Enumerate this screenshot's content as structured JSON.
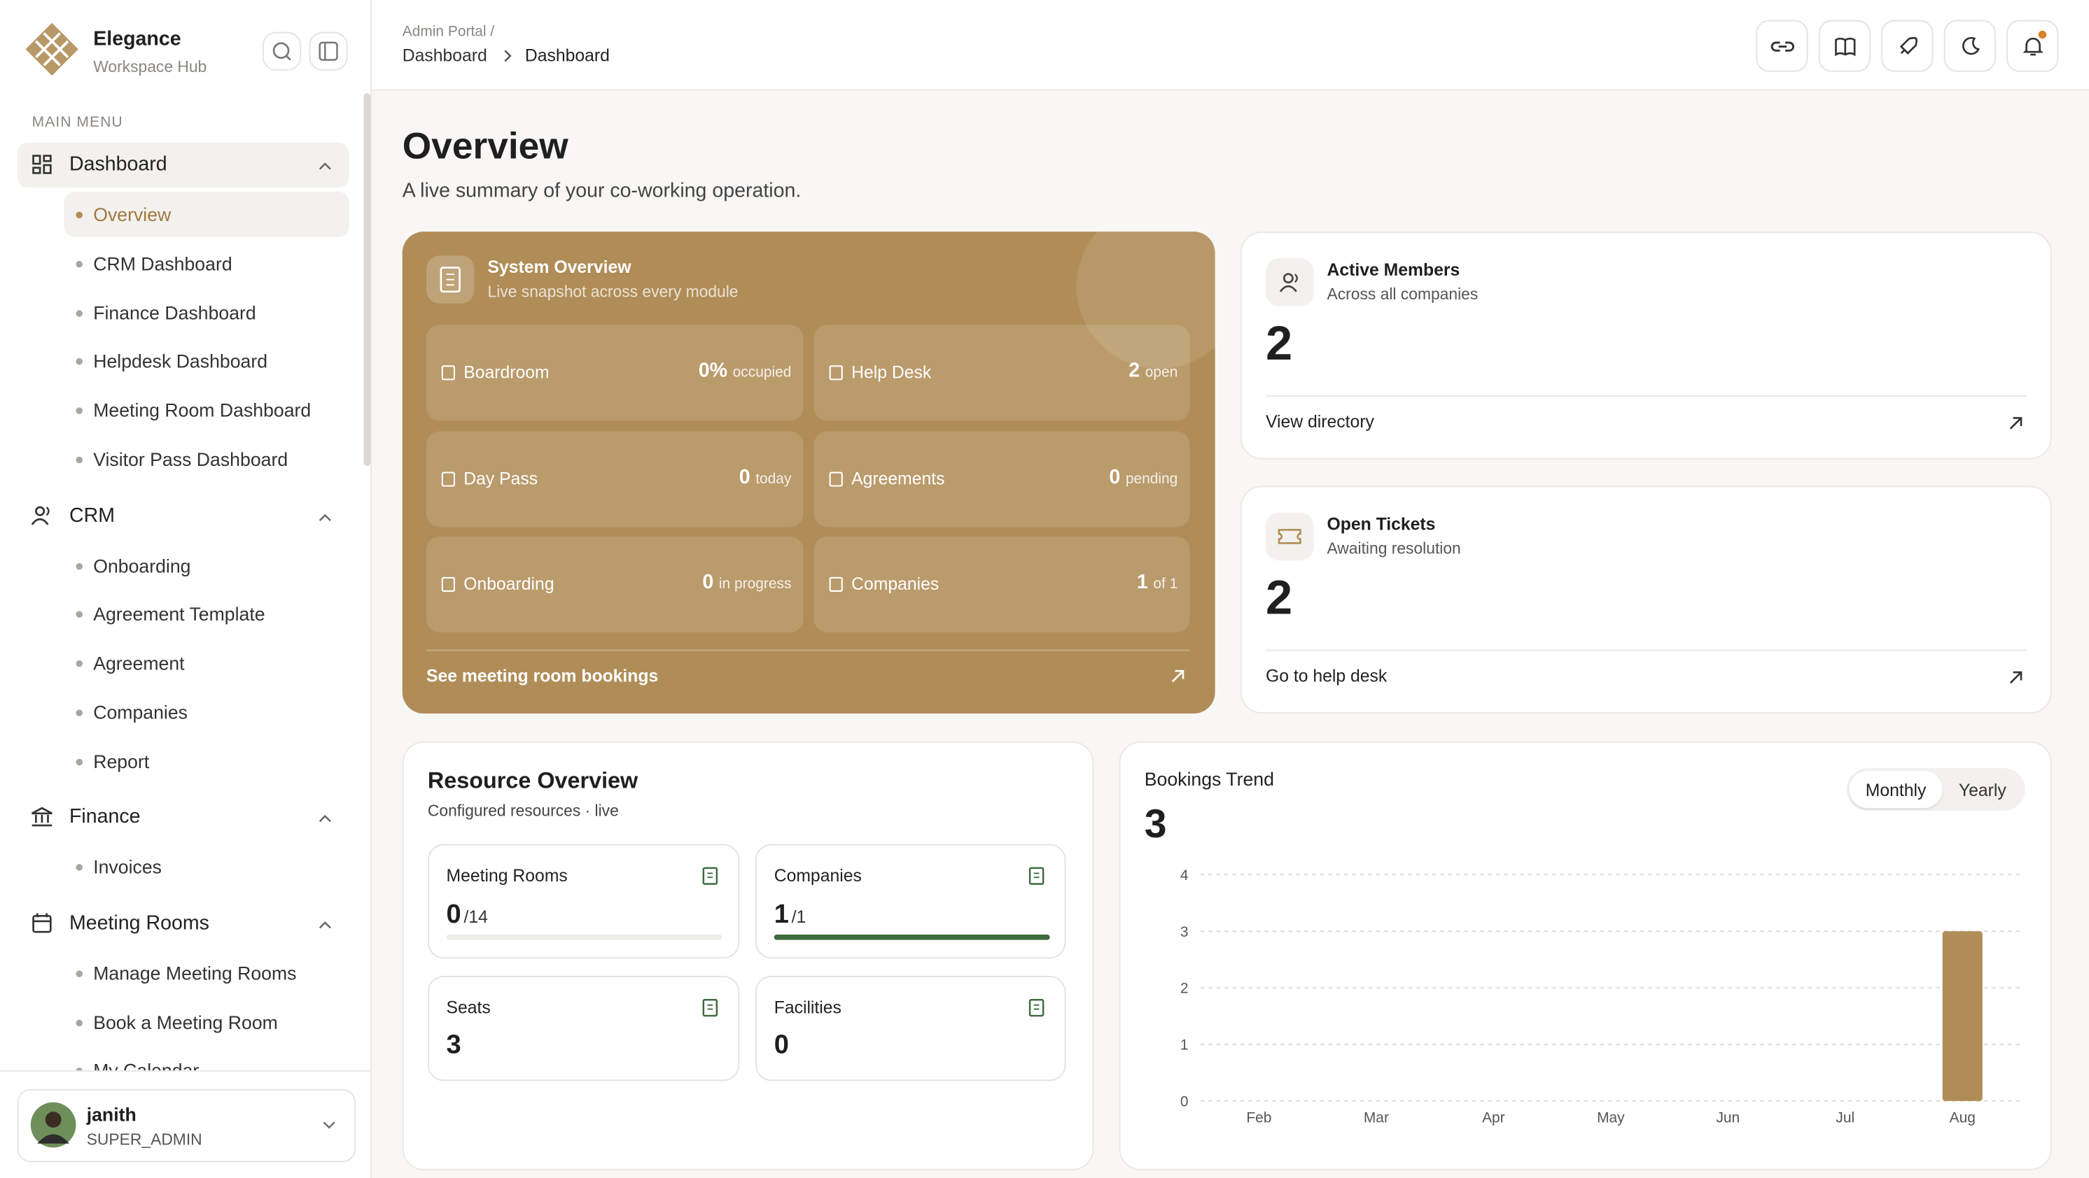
{
  "sidebar": {
    "brand": {
      "name": "Elegance",
      "tagline": "Workspace Hub"
    },
    "menu_label": "MAIN MENU",
    "groups": [
      {
        "label": "Dashboard",
        "items": [
          "Overview",
          "CRM Dashboard",
          "Finance Dashboard",
          "Helpdesk Dashboard",
          "Meeting Room Dashboard",
          "Visitor Pass Dashboard"
        ]
      },
      {
        "label": "CRM",
        "items": [
          "Onboarding",
          "Agreement Template",
          "Agreement",
          "Companies",
          "Report"
        ]
      },
      {
        "label": "Finance",
        "items": [
          "Invoices"
        ]
      },
      {
        "label": "Meeting Rooms",
        "items": [
          "Manage Meeting Rooms",
          "Book a Meeting Room",
          "My Calendar"
        ]
      }
    ],
    "user": {
      "name": "janith",
      "role": "SUPER_ADMIN"
    }
  },
  "header": {
    "breadcrumb_root": "Admin Portal /",
    "breadcrumb_parent": "Dashboard",
    "breadcrumb_current": "Dashboard"
  },
  "page": {
    "title": "Overview",
    "subtitle": "A live summary of your co-working operation."
  },
  "system_overview": {
    "title": "System Overview",
    "subtitle": "Live snapshot across every module",
    "tiles": [
      {
        "label": "Boardroom",
        "value": "0%",
        "unit": "occupied"
      },
      {
        "label": "Help Desk",
        "value": 2,
        "unit": "open"
      },
      {
        "label": "Day Pass",
        "value": 0,
        "unit": "today"
      },
      {
        "label": "Agreements",
        "value": 0,
        "unit": "pending"
      },
      {
        "label": "Onboarding",
        "value": 0,
        "unit": "in progress"
      },
      {
        "label": "Companies",
        "value": 1,
        "unit": "of 1"
      }
    ],
    "link": "See meeting room bookings"
  },
  "stat_cards": [
    {
      "title": "Active Members",
      "subtitle": "Across all companies",
      "value": 2,
      "link": "View directory"
    },
    {
      "title": "Open Tickets",
      "subtitle": "Awaiting resolution",
      "value": 2,
      "link": "Go to help desk"
    }
  ],
  "resource_overview": {
    "title": "Resource Overview",
    "subtitle": "Configured resources · live",
    "cards": [
      {
        "label": "Meeting Rooms",
        "value": 0,
        "total": "/14"
      },
      {
        "label": "Companies",
        "value": 1,
        "total": "/1"
      },
      {
        "label": "Seats",
        "value": 3
      },
      {
        "label": "Facilities",
        "value": 0
      }
    ]
  },
  "bookings_trend": {
    "title": "Bookings Trend",
    "total": 3,
    "toggles": [
      "Monthly",
      "Yearly"
    ]
  },
  "chart_data": {
    "type": "bar",
    "categories": [
      "Feb",
      "Mar",
      "Apr",
      "May",
      "Jun",
      "Jul",
      "Aug"
    ],
    "values": [
      0,
      0,
      0,
      0,
      0,
      0,
      3
    ],
    "color": "#b08d57",
    "ylim": [
      0,
      4
    ],
    "yticks": [
      0,
      1,
      2,
      3,
      4
    ],
    "grid": true
  }
}
